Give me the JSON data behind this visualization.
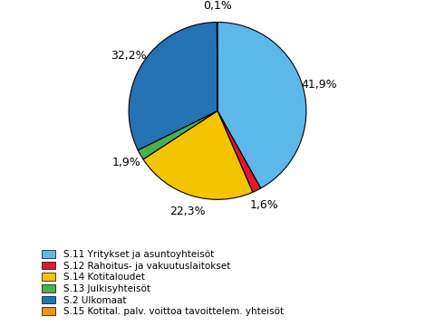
{
  "labels": [
    "S.11 Yritykset ja asuntoyhteisöt",
    "S.12 Rahoitus- ja vakuutuslaitokset",
    "S.14 Kotitaloudet",
    "S.13 Julkisyhteisöt",
    "S.2 Ulkomaat",
    "S.15 Kotital. palv. voittoa tavoittelem. yhteisöt"
  ],
  "values": [
    41.9,
    1.6,
    22.3,
    1.9,
    32.2,
    0.1
  ],
  "colors": [
    "#5BB8E8",
    "#E0192C",
    "#F5C400",
    "#4CAF50",
    "#2472B3",
    "#F5930A"
  ],
  "pct_labels": [
    "41,9%",
    "1,6%",
    "22,3%",
    "1,9%",
    "32,2%",
    "0,1%"
  ],
  "startangle": 90,
  "figsize": [
    4.8,
    3.6
  ],
  "dpi": 100
}
